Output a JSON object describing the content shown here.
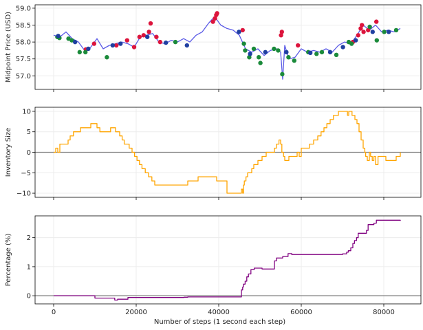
{
  "chart_data": [
    {
      "type": "line",
      "ylabel": "Midpoint Price (USD)",
      "ylim": [
        56.6,
        59.1
      ],
      "xlim": [
        -4500,
        89000
      ],
      "yticks": [
        57.0,
        57.5,
        58.0,
        58.5,
        59.0
      ],
      "ytick_labels": [
        "57.0",
        "57.5",
        "58.0",
        "58.5",
        "59.0"
      ],
      "grid": true,
      "line_color": "#5a5ae6",
      "series": [
        {
          "x": [
            0,
            1500,
            3000,
            4500,
            6000,
            7500,
            9000,
            10500,
            12000,
            13500,
            15000,
            16500,
            18000,
            19500,
            21000,
            22500,
            24000,
            25500,
            27000,
            28500,
            30000,
            31500,
            33000,
            34500,
            36000,
            37500,
            39000,
            40500,
            42000,
            43500,
            45000,
            46500,
            48000,
            49500,
            51000,
            52500,
            54000,
            55000,
            55500,
            56000,
            57000,
            58500,
            60000,
            61500,
            63000,
            64500,
            66000,
            67500,
            69000,
            70500,
            72000,
            73500,
            75000,
            76500,
            78000,
            79500,
            81000,
            82500,
            84000
          ],
          "values": [
            58.2,
            58.15,
            58.3,
            58.1,
            58.0,
            57.75,
            57.85,
            58.1,
            57.8,
            57.9,
            57.95,
            58.0,
            57.95,
            57.85,
            58.15,
            58.2,
            58.25,
            58.0,
            57.95,
            58.05,
            58.0,
            58.1,
            58.0,
            58.2,
            58.3,
            58.55,
            58.75,
            58.5,
            58.4,
            58.35,
            58.2,
            57.8,
            57.7,
            57.8,
            57.6,
            57.75,
            57.8,
            57.7,
            56.9,
            57.9,
            57.5,
            57.55,
            57.8,
            57.7,
            57.75,
            57.7,
            57.8,
            57.7,
            57.9,
            58.0,
            57.95,
            58.2,
            58.5,
            58.35,
            58.5,
            58.3,
            58.35,
            58.3,
            58.4
          ]
        }
      ],
      "markers": {
        "red": {
          "x": [
            7800,
            9800,
            15200,
            17800,
            19500,
            20800,
            21800,
            23100,
            23500,
            24900,
            25800,
            38600,
            39100,
            39400,
            39600,
            45800,
            55100,
            55300,
            59200,
            72500,
            73800,
            74400,
            74700,
            75100,
            76200,
            78200
          ],
          "values": [
            57.78,
            57.95,
            57.9,
            58.05,
            57.85,
            58.15,
            58.2,
            58.3,
            58.55,
            58.15,
            58.0,
            58.6,
            58.7,
            58.8,
            58.85,
            58.35,
            58.2,
            58.3,
            57.9,
            58.0,
            58.2,
            58.4,
            58.5,
            58.3,
            58.35,
            58.6
          ]
        },
        "green": {
          "x": [
            900,
            1400,
            3600,
            4400,
            6300,
            7700,
            12900,
            29500,
            46100,
            46400,
            47400,
            48500,
            49700,
            50100,
            53400,
            54400,
            55400,
            56900,
            58300,
            61700,
            63700,
            65000,
            68500,
            71500,
            72200,
            76600,
            78300,
            80100,
            83000
          ],
          "values": [
            58.15,
            58.12,
            58.1,
            58.05,
            57.7,
            57.7,
            57.55,
            58.0,
            57.95,
            57.75,
            57.55,
            57.8,
            57.55,
            57.38,
            57.8,
            57.75,
            57.05,
            57.55,
            57.45,
            57.7,
            57.65,
            57.7,
            57.62,
            58.0,
            57.95,
            58.45,
            58.05,
            58.3,
            58.35
          ]
        },
        "blue": {
          "x": [
            1100,
            5200,
            8400,
            14300,
            16200,
            22700,
            27200,
            32300,
            44900,
            47600,
            51300,
            56400,
            62200,
            67000,
            70100,
            73200,
            77300,
            81200
          ],
          "values": [
            58.18,
            58.0,
            57.8,
            57.9,
            57.95,
            58.15,
            57.98,
            57.9,
            58.3,
            57.65,
            57.7,
            57.7,
            57.68,
            57.7,
            57.85,
            58.05,
            58.3,
            58.3
          ]
        }
      }
    },
    {
      "type": "line",
      "ylabel": "Inventory Size",
      "ylim": [
        -11,
        11
      ],
      "xlim": [
        -4500,
        89000
      ],
      "yticks": [
        -10,
        -5,
        0,
        5,
        10
      ],
      "ytick_labels": [
        "−10",
        "−5",
        "0",
        "5",
        "10"
      ],
      "grid": true,
      "zero_line": true,
      "line_color": "#ffa500",
      "series": [
        {
          "step": true,
          "x": [
            0,
            500,
            1000,
            1500,
            3500,
            4000,
            4800,
            5200,
            6500,
            7000,
            8000,
            9000,
            10500,
            11200,
            12500,
            13800,
            15000,
            16000,
            16600,
            17100,
            17600,
            18300,
            19000,
            19600,
            20200,
            20800,
            21400,
            22200,
            23000,
            23800,
            24500,
            25300,
            32500,
            33000,
            35000,
            39000,
            39500,
            42000,
            45500,
            45800,
            46000,
            46200,
            46600,
            47000,
            48000,
            48500,
            49500,
            50500,
            51500,
            52500,
            53500,
            54000,
            54600,
            55000,
            55300,
            55700,
            56000,
            57000,
            58000,
            59000,
            59500,
            60000,
            61000,
            62000,
            63000,
            64000,
            64800,
            65500,
            66200,
            67000,
            67800,
            68500,
            69000,
            71000,
            71200,
            71500,
            72300,
            73000,
            73500,
            74000,
            74500,
            75000,
            75400,
            75600,
            76000,
            76500,
            76800,
            77200,
            77600,
            78000,
            78600,
            79000,
            80500,
            82000,
            83000,
            84000
          ],
          "values": [
            0,
            1,
            0,
            2,
            3,
            4,
            5,
            5,
            6,
            6,
            6,
            7,
            6,
            5,
            5,
            6,
            5,
            4,
            3,
            2,
            2,
            1,
            0,
            -1,
            -2,
            -3,
            -4,
            -5,
            -6,
            -7,
            -8,
            -8,
            -7,
            -7,
            -6,
            -6,
            -7,
            -10,
            -9,
            -10,
            -8,
            -7,
            -6,
            -5,
            -4,
            -3,
            -2,
            -1,
            0,
            0,
            1,
            2,
            3,
            2,
            0,
            -1,
            -2,
            -1,
            -1,
            0,
            -1,
            1,
            1,
            2,
            3,
            4,
            5,
            6,
            7,
            8,
            9,
            9,
            10,
            10,
            9,
            10,
            9,
            8,
            7,
            5,
            3,
            1,
            0,
            -1,
            -2,
            0,
            -1,
            -2,
            -1,
            -3,
            -1,
            -1,
            -2,
            -2,
            -1,
            0
          ]
        }
      ]
    },
    {
      "type": "line",
      "xlabel": "Number of steps (1 second each step)",
      "ylabel": "Percentage (%)",
      "ylim": [
        -0.28,
        2.75
      ],
      "xlim": [
        -4500,
        89000
      ],
      "xticks": [
        0,
        20000,
        40000,
        60000,
        80000
      ],
      "xtick_labels": [
        "0",
        "20000",
        "40000",
        "60000",
        "80000"
      ],
      "yticks": [
        0,
        1,
        2
      ],
      "ytick_labels": [
        "0",
        "1",
        "2"
      ],
      "grid": true,
      "zero_line": true,
      "line_color": "#800080",
      "series": [
        {
          "step": true,
          "x": [
            0,
            10000,
            14800,
            15500,
            18000,
            31600,
            32500,
            45500,
            45800,
            46000,
            46400,
            46800,
            47200,
            47800,
            48600,
            50500,
            53500,
            54000,
            55500,
            56800,
            57700,
            70000,
            71000,
            71400,
            72000,
            72500,
            72900,
            73400,
            73800,
            75800,
            76200,
            77600,
            78200,
            84000
          ],
          "values": [
            0,
            -0.08,
            -0.15,
            -0.12,
            -0.06,
            -0.05,
            -0.04,
            0.2,
            0.3,
            0.4,
            0.5,
            0.65,
            0.75,
            0.9,
            0.95,
            0.92,
            1.2,
            1.3,
            1.35,
            1.45,
            1.42,
            1.44,
            1.5,
            1.55,
            1.65,
            1.8,
            1.9,
            2.0,
            2.15,
            2.25,
            2.45,
            2.5,
            2.6,
            2.58
          ]
        }
      ]
    }
  ]
}
